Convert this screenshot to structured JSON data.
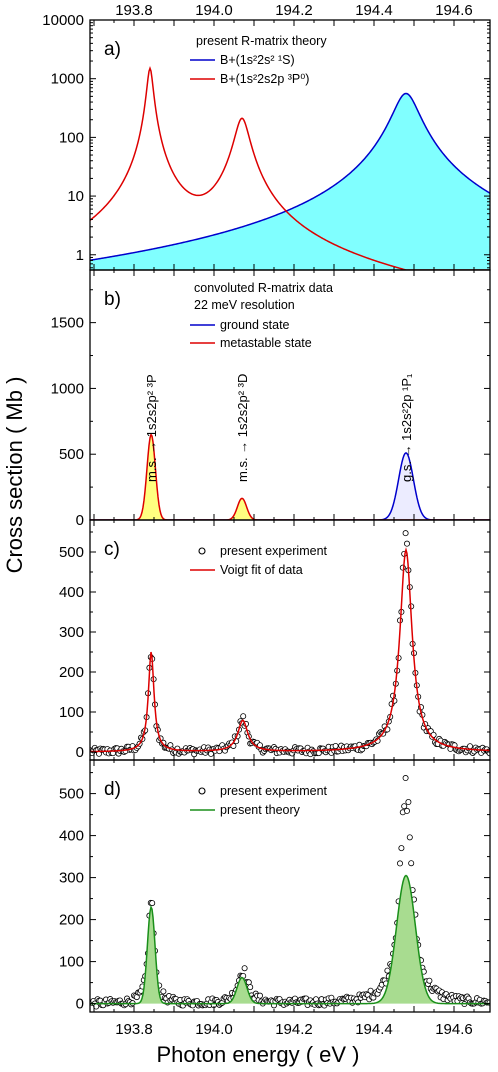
{
  "figure": {
    "top_axis_ticks": [
      "193.8",
      "194.0",
      "194.2",
      "194.4",
      "194.6"
    ],
    "xlabel": "Photon energy  ( eV )",
    "ylabel": "Cross section  ( Mb )"
  },
  "chart_data": [
    {
      "panel": "a)",
      "type": "area",
      "xlim": [
        193.69,
        194.69
      ],
      "yscale": "log",
      "ylim": [
        0.55,
        10000
      ],
      "ytick_labels": [
        "1",
        "10",
        "100",
        "1000",
        "10000"
      ],
      "legend_title": "present R-matrix theory",
      "legend_placement": "top-center",
      "series": [
        {
          "name": "B+(1s²2s² ¹S)",
          "color": "#0000cc",
          "fill": "#80ffff",
          "peaks": [
            {
              "x0": 194.48,
              "w": 0.03,
              "height": 560
            }
          ]
        },
        {
          "name": "B+(1s²2s2p ³P⁰)",
          "color": "#dd0000",
          "fill": "none",
          "peaks": [
            {
              "x0": 193.84,
              "w": 0.0072,
              "height": 1500
            },
            {
              "x0": 194.07,
              "w": 0.017,
              "height": 210
            }
          ]
        }
      ]
    },
    {
      "panel": "b)",
      "type": "area",
      "xlim": [
        193.69,
        194.69
      ],
      "ylim": [
        0,
        1900
      ],
      "ytick_labels": [
        "0",
        "500",
        "1000",
        "1500"
      ],
      "legend_title": [
        "convoluted R-matrix data",
        "22 meV resolution"
      ],
      "legend_placement": "top-center",
      "series": [
        {
          "name": "ground state",
          "color": "#0000cc",
          "fill": "#ececff",
          "peaks": [
            {
              "x0": 194.48,
              "sigma": 0.0185,
              "height": 510
            }
          ]
        },
        {
          "name": "metastable state",
          "color": "#dd0000",
          "fill": "#ffff80",
          "peaks": [
            {
              "x0": 193.843,
              "sigma": 0.0105,
              "height": 650
            },
            {
              "x0": 194.07,
              "sigma": 0.0115,
              "height": 165
            }
          ]
        }
      ],
      "annotations": [
        {
          "x": 193.843,
          "text": "m.s.  →  1s2s2p² ³P"
        },
        {
          "x": 194.07,
          "text": "m.s.  →  1s2s2p² ³D"
        },
        {
          "x": 194.48,
          "text": "g.s.  →  1s2s²2p ¹P₁"
        }
      ]
    },
    {
      "panel": "c)",
      "type": "scatter",
      "xlim": [
        193.69,
        194.69
      ],
      "ylim": [
        -20,
        580
      ],
      "ytick_labels": [
        "0",
        "100",
        "200",
        "300",
        "400",
        "500"
      ],
      "legend_placement": "top-center",
      "series": [
        {
          "name": "present experiment",
          "marker": "open-circle",
          "color": "#000000",
          "peaks": [
            {
              "x0": 193.843,
              "w": 0.0085,
              "height": 250
            },
            {
              "x0": 194.072,
              "w": 0.015,
              "height": 78
            },
            {
              "x0": 194.48,
              "w": 0.0185,
              "height": 505
            }
          ]
        },
        {
          "name": "Voigt fit of data",
          "color": "#dd0000",
          "peaks": [
            {
              "x0": 193.843,
              "w": 0.0085,
              "height": 250
            },
            {
              "x0": 194.072,
              "w": 0.015,
              "height": 78
            },
            {
              "x0": 194.48,
              "w": 0.0185,
              "height": 505
            }
          ]
        }
      ]
    },
    {
      "panel": "d)",
      "type": "scatter",
      "xlim": [
        193.69,
        194.69
      ],
      "ylim": [
        -20,
        580
      ],
      "ytick_labels": [
        "0",
        "100",
        "200",
        "300",
        "400",
        "500"
      ],
      "xtick_labels": [
        "193.8",
        "194.0",
        "194.2",
        "194.4",
        "194.6"
      ],
      "legend_placement": "top-center",
      "series": [
        {
          "name": "present experiment",
          "marker": "open-circle",
          "color": "#000000",
          "peaks": [
            {
              "x0": 193.843,
              "w": 0.0085,
              "height": 250
            },
            {
              "x0": 194.072,
              "w": 0.015,
              "height": 78
            },
            {
              "x0": 194.48,
              "w": 0.0185,
              "height": 505
            }
          ]
        },
        {
          "name": "present theory",
          "color": "#1a8f1a",
          "fill": "#a8dc90",
          "peaks": [
            {
              "x0": 193.843,
              "sigma": 0.0095,
              "height": 230
            },
            {
              "x0": 194.07,
              "sigma": 0.0125,
              "height": 62
            },
            {
              "x0": 194.48,
              "sigma": 0.0235,
              "height": 305
            }
          ]
        }
      ]
    }
  ]
}
